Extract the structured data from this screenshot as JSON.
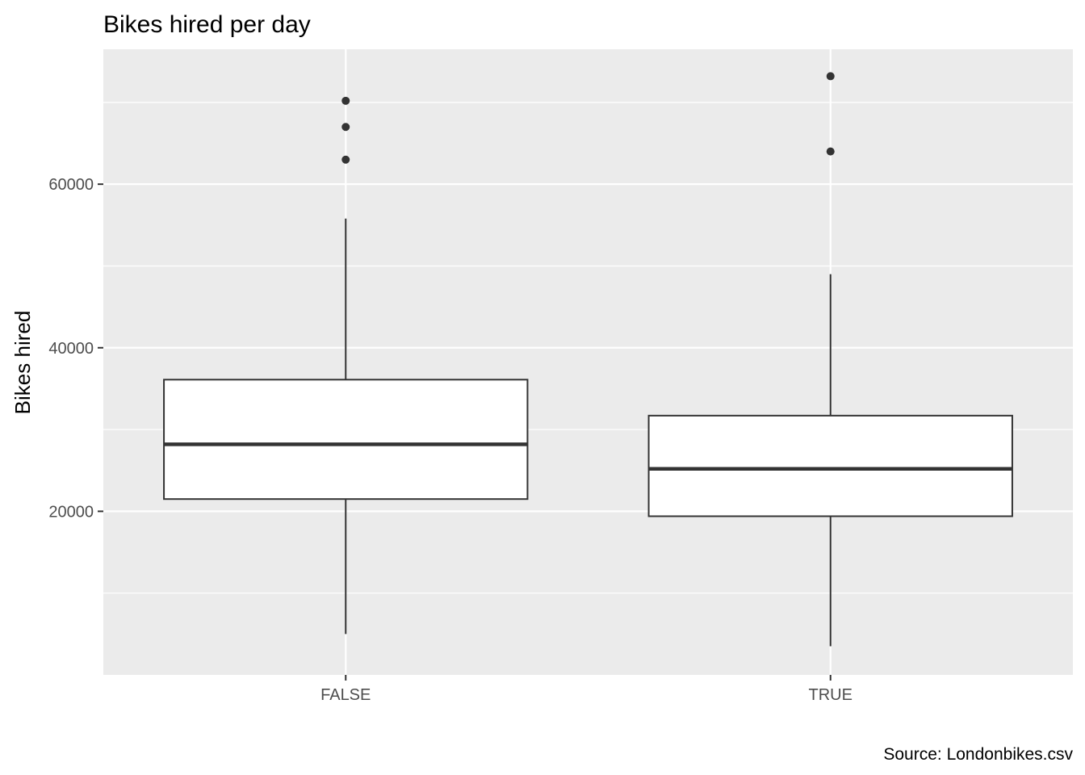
{
  "chart_data": {
    "type": "boxplot",
    "title": "Bikes hired per day",
    "xlabel": "",
    "ylabel": "Bikes hired",
    "caption": "Source: Londonbikes.csv",
    "categories": [
      "FALSE",
      "TRUE"
    ],
    "yticks": [
      20000,
      40000,
      60000
    ],
    "ylim": [
      0,
      76500
    ],
    "grid": true,
    "legend": "none",
    "colors": {
      "panel": "#ebebeb",
      "grid": "#ffffff",
      "box_fill": "#ffffff",
      "stroke": "#333333"
    },
    "boxes": [
      {
        "category": "FALSE",
        "min": 5000,
        "q1": 21500,
        "median": 28200,
        "q3": 36100,
        "max": 55800,
        "outliers": [
          63000,
          67000,
          70200
        ]
      },
      {
        "category": "TRUE",
        "min": 3500,
        "q1": 19400,
        "median": 25200,
        "q3": 31700,
        "max": 49000,
        "outliers": [
          64000,
          73200
        ]
      }
    ]
  }
}
